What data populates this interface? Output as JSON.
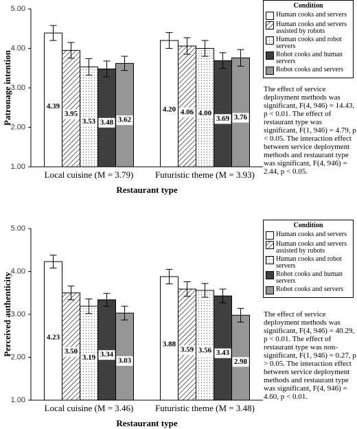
{
  "chart_data": [
    {
      "type": "bar",
      "ylabel": "Patronage intention",
      "xlabel": "Restaurant type",
      "categories": [
        "Local cuisine (M = 3.79)",
        "Futuristic theme (M = 3.93)"
      ],
      "ylim": [
        1,
        5
      ],
      "yticks": [
        {
          "value": 1,
          "label": "1.00"
        },
        {
          "value": 2,
          "label": "2.00"
        },
        {
          "value": 3,
          "label": "3.00"
        },
        {
          "value": 4,
          "label": "4.00"
        },
        {
          "value": 5,
          "label": "5.00"
        }
      ],
      "legend_title": "Condition",
      "series": [
        {
          "name": "Human cooks and servers",
          "color": "#ffffff",
          "pattern": "none",
          "values": [
            4.39,
            4.2
          ],
          "errors": [
            0.19,
            0.2
          ],
          "value_labels": [
            "4.39",
            "4.20"
          ]
        },
        {
          "name": "Human cooks and servers assisted by robots",
          "color": "#ffffff",
          "pattern": "hatch",
          "values": [
            3.95,
            4.06
          ],
          "errors": [
            0.2,
            0.21
          ],
          "value_labels": [
            "3.95",
            "4.06"
          ]
        },
        {
          "name": "Human cooks and robot servers",
          "color": "#ffffff",
          "pattern": "dots",
          "values": [
            3.53,
            4.0
          ],
          "errors": [
            0.21,
            0.2
          ],
          "value_labels": [
            "3.53",
            "4.00"
          ]
        },
        {
          "name": "Robot cooks and human servers",
          "color": "#3f3f3f",
          "pattern": "none",
          "values": [
            3.48,
            3.69
          ],
          "errors": [
            0.2,
            0.2
          ],
          "value_labels": [
            "3.48",
            "3.69"
          ]
        },
        {
          "name": "Robot cooks and servers",
          "color": "#969696",
          "pattern": "none",
          "values": [
            3.62,
            3.76
          ],
          "errors": [
            0.18,
            0.21
          ],
          "value_labels": [
            "3.62",
            "3.76"
          ]
        }
      ],
      "annotation": "The effect of service deployment methods was significant, F(4, 946) = 14.43, p < 0.01. The effect of restaurant type was significant, F(1, 946) = 4.79, p < 0.05. The interaction effect between service deployment methods and restaurant type was significant, F(4, 946) = 2.44, p < 0.05."
    },
    {
      "type": "bar",
      "ylabel": "Perceived authenticity",
      "xlabel": "Restaurant type",
      "categories": [
        "Local cuisine (M = 3.46)",
        "Futuristic theme (M = 3.48)"
      ],
      "ylim": [
        1,
        5
      ],
      "yticks": [
        {
          "value": 1,
          "label": "1.00"
        },
        {
          "value": 2,
          "label": "2.00"
        },
        {
          "value": 3,
          "label": "3.00"
        },
        {
          "value": 4,
          "label": "4.00"
        },
        {
          "value": 5,
          "label": "5.00"
        }
      ],
      "legend_title": "Condition",
      "series": [
        {
          "name": "Human cooks and servers",
          "color": "#ffffff",
          "pattern": "none",
          "values": [
            4.23,
            3.88
          ],
          "errors": [
            0.15,
            0.17
          ],
          "value_labels": [
            "4.23",
            "3.88"
          ]
        },
        {
          "name": "Human cooks and servers assisted by robots",
          "color": "#ffffff",
          "pattern": "hatch",
          "values": [
            3.5,
            3.59
          ],
          "errors": [
            0.16,
            0.17
          ],
          "value_labels": [
            "3.50",
            "3.59"
          ]
        },
        {
          "name": "Human cooks and robot servers",
          "color": "#ffffff",
          "pattern": "dots",
          "values": [
            3.19,
            3.56
          ],
          "errors": [
            0.17,
            0.16
          ],
          "value_labels": [
            "3.19",
            "3.56"
          ]
        },
        {
          "name": "Robot cooks and human servers",
          "color": "#3f3f3f",
          "pattern": "none",
          "values": [
            3.34,
            3.43
          ],
          "errors": [
            0.15,
            0.16
          ],
          "value_labels": [
            "3.34",
            "3.43"
          ]
        },
        {
          "name": "Robot cooks and servers",
          "color": "#969696",
          "pattern": "none",
          "values": [
            3.03,
            2.98
          ],
          "errors": [
            0.16,
            0.16
          ],
          "value_labels": [
            "3.03",
            "2.98"
          ]
        }
      ],
      "annotation": "The effect of service deployment methods was significant, F(4, 946) = 40.29, p < 0.01. The effect of restaurant type was non-significant, F(1, 946) = 0.27, p > 0.05. The interaction effect between service deployment methods and restaurant type was significant, F(4, 946) = 4.60, p < 0.01."
    }
  ]
}
